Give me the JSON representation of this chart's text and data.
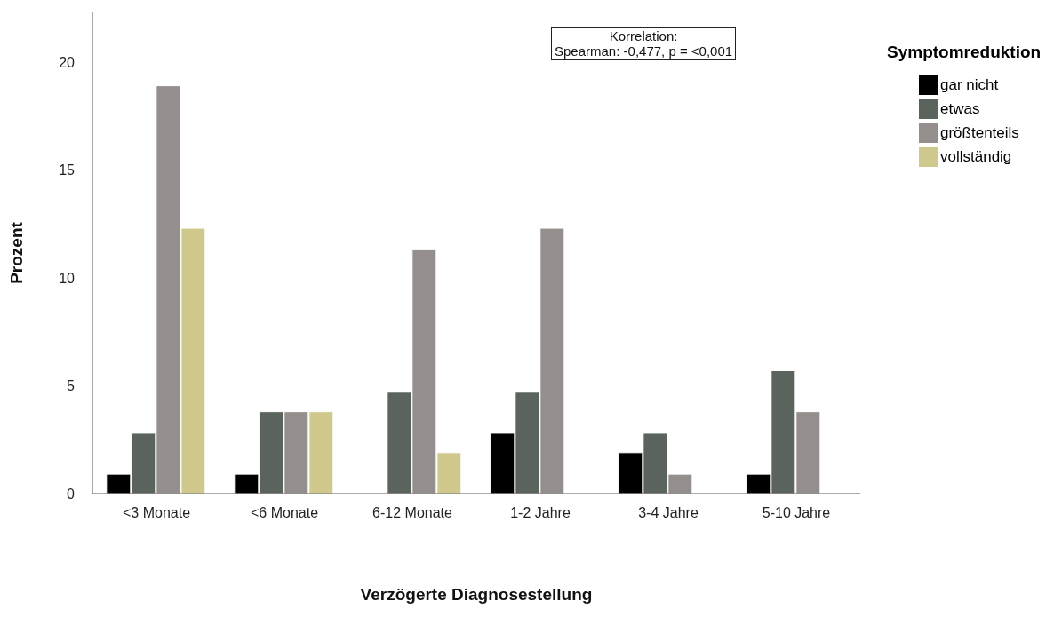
{
  "chart_data": {
    "type": "bar",
    "xlabel": "Verzögerte Diagnosestellung",
    "ylabel": "Prozent",
    "legend_title": "Symptomreduktion",
    "categories": [
      "<3 Monate",
      "<6 Monate",
      "6-12 Monate",
      "1-2 Jahre",
      "3-4 Jahre",
      "5-10 Jahre"
    ],
    "series": [
      {
        "name": "gar nicht",
        "color": "#000000",
        "values": [
          0.9,
          0.9,
          null,
          2.8,
          1.9,
          0.9
        ]
      },
      {
        "name": "etwas",
        "color": "#5a635c",
        "values": [
          2.8,
          3.8,
          4.7,
          4.7,
          2.8,
          5.7
        ]
      },
      {
        "name": "größtenteils",
        "color": "#948f8d",
        "values": [
          18.9,
          3.8,
          11.3,
          12.3,
          0.9,
          3.8
        ]
      },
      {
        "name": "vollständig",
        "color": "#cfc98e",
        "values": [
          12.3,
          3.8,
          1.9,
          null,
          null,
          null
        ]
      }
    ],
    "ylim": [
      0,
      22.3
    ],
    "yticks": [
      0,
      5,
      10,
      15,
      20
    ],
    "grid": false,
    "legend": "right",
    "annotations": [
      "Korrelation:\nSpearman: -0,477, p = <0,001"
    ]
  }
}
